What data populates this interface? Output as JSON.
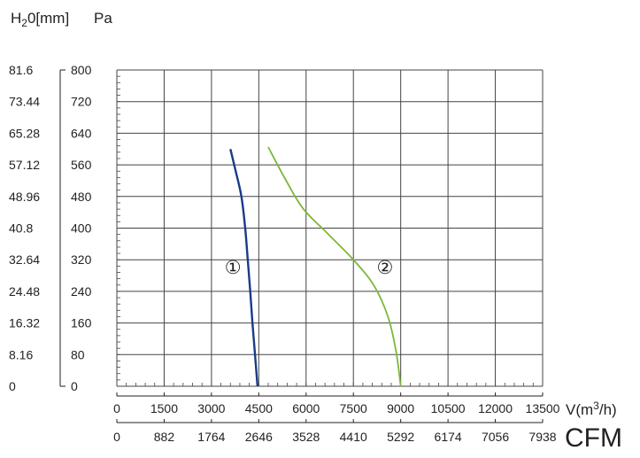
{
  "chart_data": {
    "type": "line",
    "left_unit_label": {
      "base": "H",
      "sub": "2",
      "rest": "0[mm]"
    },
    "right_unit_label": "Pa",
    "x_unit_label": {
      "base": "V(m",
      "sup": "3",
      "rest": "/h)"
    },
    "cfm_label": "CFM",
    "x_ticks": [
      "0",
      "1500",
      "3000",
      "4500",
      "6000",
      "7500",
      "9000",
      "10500",
      "12000",
      "13500"
    ],
    "x_values": [
      0,
      1500,
      3000,
      4500,
      6000,
      7500,
      9000,
      10500,
      12000,
      13500
    ],
    "cfm_ticks": [
      "0",
      "882",
      "1764",
      "2646",
      "3528",
      "4410",
      "5292",
      "6174",
      "7056",
      "7938"
    ],
    "pa_ticks": [
      "0",
      "80",
      "160",
      "240",
      "320",
      "400",
      "480",
      "560",
      "640",
      "720",
      "800"
    ],
    "pa_values": [
      0,
      80,
      160,
      240,
      320,
      400,
      480,
      560,
      640,
      720,
      800
    ],
    "mm_ticks": [
      "0",
      "8.16",
      "16.32",
      "24.48",
      "32.64",
      "40.8",
      "48.96",
      "57.12",
      "65.28",
      "73.44",
      "81.6"
    ],
    "xlim": [
      0,
      13500
    ],
    "ylim": [
      0,
      800
    ],
    "grid": true,
    "series": [
      {
        "label": "①",
        "color": "#1a3a8a",
        "label_at": [
          3680,
          285
        ],
        "points": [
          [
            3600,
            600
          ],
          [
            3780,
            540
          ],
          [
            3950,
            480
          ],
          [
            4070,
            400
          ],
          [
            4150,
            320
          ],
          [
            4230,
            240
          ],
          [
            4300,
            160
          ],
          [
            4380,
            80
          ],
          [
            4460,
            0
          ]
        ]
      },
      {
        "label": "②",
        "color": "#7ab83a",
        "label_at": [
          8500,
          285
        ],
        "points": [
          [
            4800,
            605
          ],
          [
            5300,
            530
          ],
          [
            5900,
            450
          ],
          [
            6700,
            385
          ],
          [
            7500,
            320
          ],
          [
            8150,
            255
          ],
          [
            8600,
            175
          ],
          [
            8850,
            90
          ],
          [
            9000,
            0
          ]
        ]
      }
    ]
  }
}
